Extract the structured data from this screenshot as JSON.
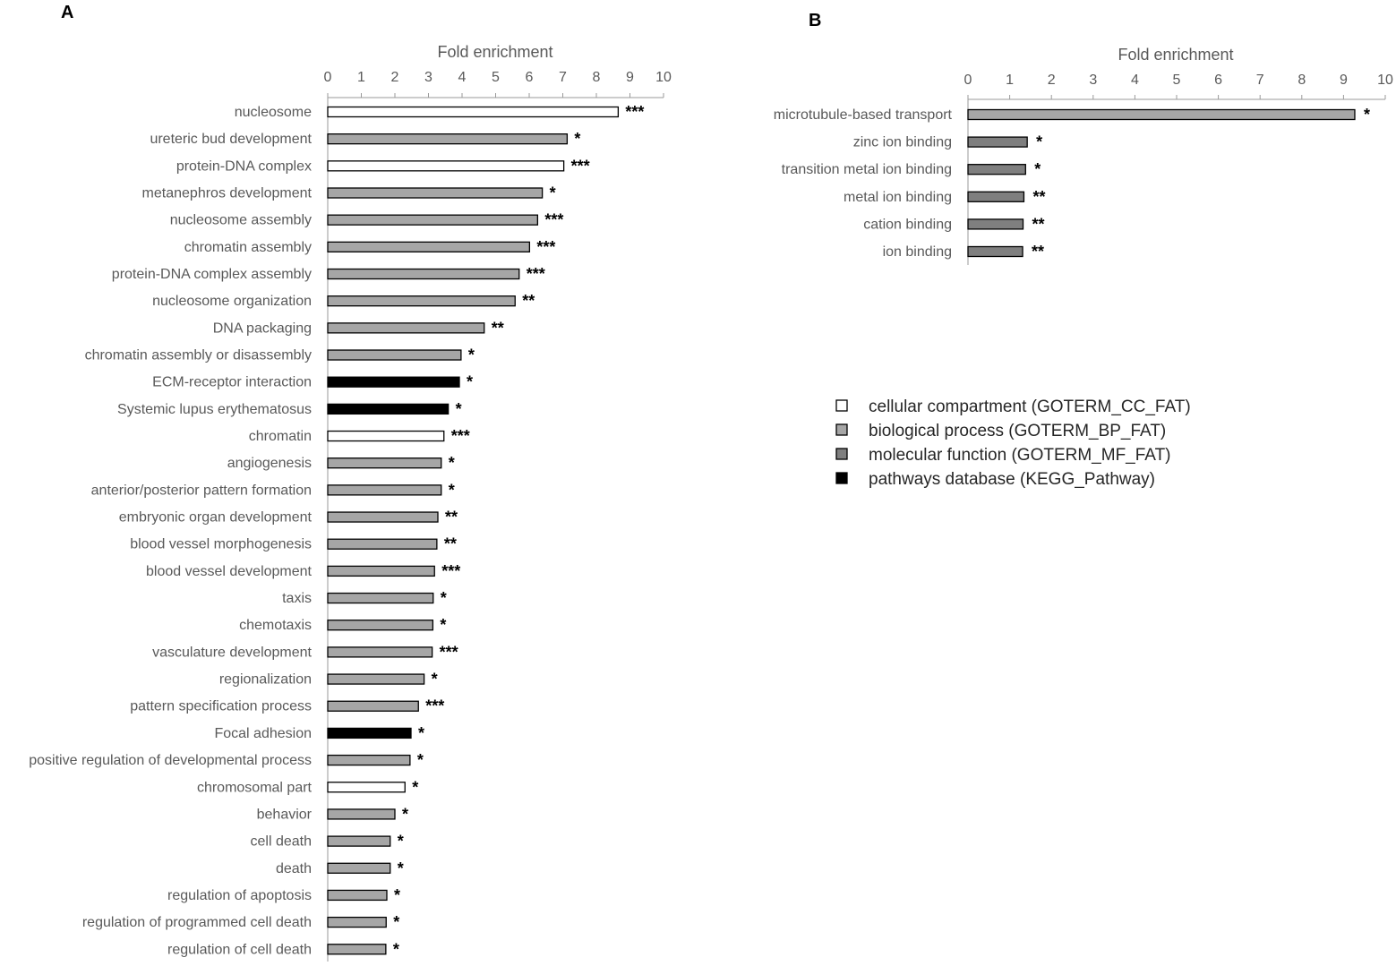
{
  "colors": {
    "cc": "#ffffff",
    "bp": "#a6a6a6",
    "mf": "#7f7f7f",
    "kegg": "#000000"
  },
  "legend": [
    {
      "key": "cc",
      "label": "cellular compartment (GOTERM_CC_FAT)"
    },
    {
      "key": "bp",
      "label": "biological process (GOTERM_BP_FAT)"
    },
    {
      "key": "mf",
      "label": "molecular function (GOTERM_MF_FAT)"
    },
    {
      "key": "kegg",
      "label": "pathways database (KEGG_Pathway)"
    }
  ],
  "chart_data": [
    {
      "panel": "A",
      "type": "bar",
      "orientation": "horizontal",
      "xlabel": "Fold enrichment",
      "xlim": [
        0,
        10
      ],
      "xticks": [
        "0",
        "1",
        "2",
        "3",
        "4",
        "5",
        "6",
        "7",
        "8",
        "9",
        "10"
      ],
      "categories": [
        "nucleosome",
        "ureteric bud development",
        "protein-DNA complex",
        "metanephros development",
        "nucleosome assembly",
        "chromatin assembly",
        "protein-DNA complex assembly",
        "nucleosome organization",
        "DNA packaging",
        "chromatin assembly or disassembly",
        "ECM-receptor interaction",
        "Systemic lupus erythematosus",
        "chromatin",
        "angiogenesis",
        "anterior/posterior pattern formation",
        "embryonic organ development",
        "blood vessel morphogenesis",
        "blood vessel development",
        "taxis",
        "chemotaxis",
        "vasculature development",
        "regionalization",
        "pattern specification process",
        "Focal adhesion",
        "positive regulation of developmental process",
        "chromosomal part",
        "behavior",
        "cell death",
        "death",
        "regulation of apoptosis",
        "regulation of programmed cell death",
        "regulation of cell death"
      ],
      "values": [
        8.65,
        7.13,
        7.03,
        6.39,
        6.25,
        6.01,
        5.7,
        5.58,
        4.66,
        3.97,
        3.92,
        3.59,
        3.46,
        3.38,
        3.38,
        3.28,
        3.25,
        3.18,
        3.14,
        3.13,
        3.11,
        2.87,
        2.7,
        2.48,
        2.45,
        2.3,
        2.0,
        1.86,
        1.86,
        1.76,
        1.74,
        1.73
      ],
      "groups": [
        "cc",
        "bp",
        "cc",
        "bp",
        "bp",
        "bp",
        "bp",
        "bp",
        "bp",
        "bp",
        "kegg",
        "kegg",
        "cc",
        "bp",
        "bp",
        "bp",
        "bp",
        "bp",
        "bp",
        "bp",
        "bp",
        "bp",
        "bp",
        "kegg",
        "bp",
        "cc",
        "bp",
        "bp",
        "bp",
        "bp",
        "bp",
        "bp"
      ],
      "significance": [
        "***",
        "*",
        "***",
        "*",
        "***",
        "***",
        "***",
        "**",
        "**",
        "*",
        "*",
        "*",
        "***",
        "*",
        "*",
        "**",
        "**",
        "***",
        "*",
        "*",
        "***",
        "*",
        "***",
        "*",
        "*",
        "*",
        "*",
        "*",
        "*",
        "*",
        "*",
        "*"
      ]
    },
    {
      "panel": "B",
      "type": "bar",
      "orientation": "horizontal",
      "xlabel": "Fold enrichment",
      "xlim": [
        0,
        10
      ],
      "xticks": [
        "0",
        "1",
        "2",
        "3",
        "4",
        "5",
        "6",
        "7",
        "8",
        "9",
        "10"
      ],
      "categories": [
        "microtubule-based transport",
        "zinc ion binding",
        "transition metal ion binding",
        "metal ion binding",
        "cation binding",
        "ion binding"
      ],
      "values": [
        9.27,
        1.42,
        1.38,
        1.34,
        1.32,
        1.31
      ],
      "groups": [
        "bp",
        "mf",
        "mf",
        "mf",
        "mf",
        "mf"
      ],
      "significance": [
        "*",
        "*",
        "*",
        "**",
        "**",
        "**"
      ]
    }
  ]
}
